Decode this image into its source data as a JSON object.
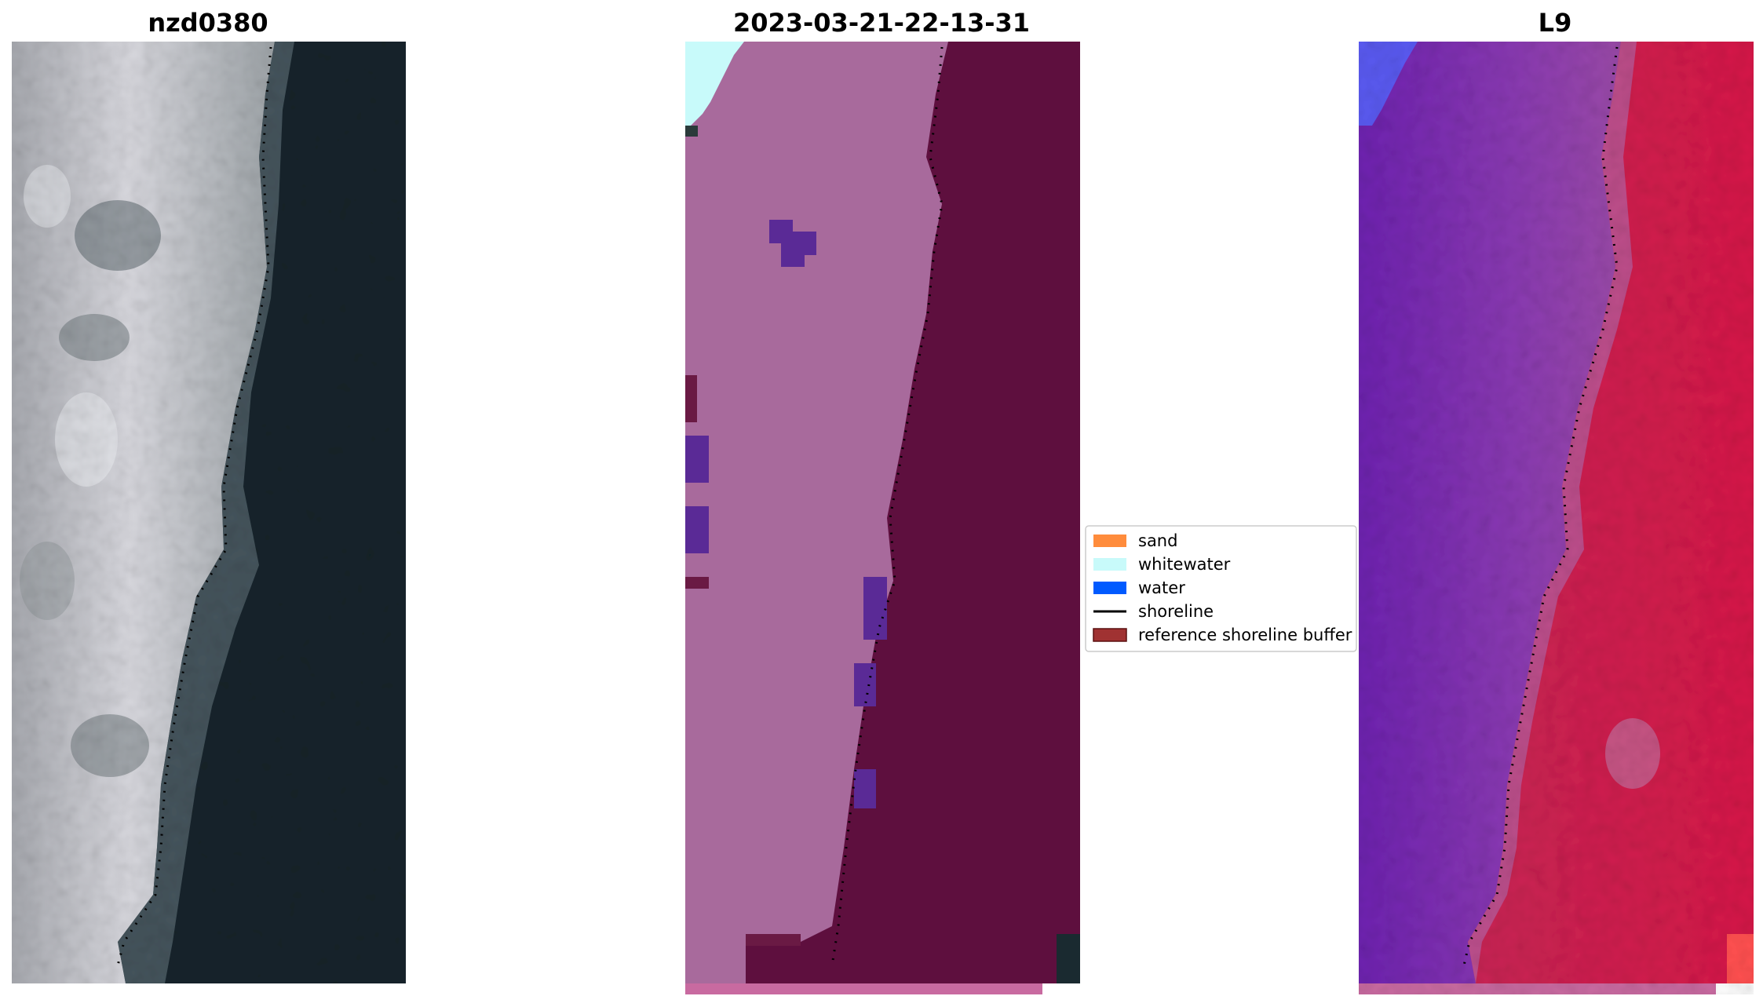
{
  "panels": [
    {
      "title": "nzd0380",
      "kind": "rgb-image"
    },
    {
      "title": "2023-03-21-22-13-31",
      "kind": "classified-image"
    },
    {
      "title": "L9",
      "kind": "index-image"
    }
  ],
  "legend": {
    "placement": "center",
    "items": [
      {
        "label": "sand",
        "color": "#ff8c3c",
        "symbol": "patch"
      },
      {
        "label": "whitewater",
        "color": "#c8fafa",
        "symbol": "patch"
      },
      {
        "label": "water",
        "color": "#005aff",
        "symbol": "patch"
      },
      {
        "label": "shoreline",
        "color": "#000000",
        "symbol": "line"
      },
      {
        "label": "reference shoreline buffer",
        "color": "#a03232",
        "symbol": "patch"
      }
    ]
  },
  "colors": {
    "rgb_land": "#b8b8c0",
    "rgb_water": "#15242c",
    "class_land": "#a86a9c",
    "class_water": "#5e0f3e",
    "class_whitewater": "#c8fafa",
    "class_water_patch": "#5a2a96",
    "index_land": "#7d35b0",
    "index_water": "#d41a48",
    "shoreline": "#000000"
  }
}
